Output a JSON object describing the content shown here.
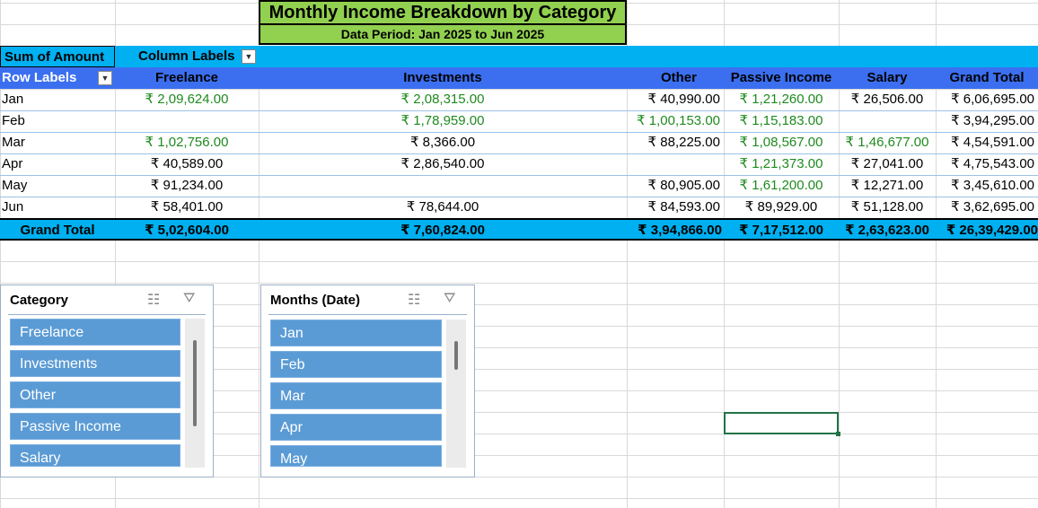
{
  "title": "Monthly Income Breakdown by Category",
  "subtitle": "Data Period: Jan 2025 to Jun 2025",
  "pivot": {
    "values_label": "Sum of Amount",
    "column_labels": "Column Labels",
    "row_labels": "Row Labels",
    "columns": [
      "Freelance",
      "Investments",
      "Other",
      "Passive Income",
      "Salary",
      "Grand Total"
    ],
    "rows": [
      {
        "label": "Jan",
        "cells": [
          "₹ 2,09,624.00",
          "₹ 2,08,315.00",
          "₹ 40,990.00",
          "₹ 1,21,260.00",
          "₹ 26,506.00",
          "₹ 6,06,695.00"
        ]
      },
      {
        "label": "Feb",
        "cells": [
          "",
          "₹ 1,78,959.00",
          "₹ 1,00,153.00",
          "₹ 1,15,183.00",
          "",
          "₹ 3,94,295.00"
        ]
      },
      {
        "label": "Mar",
        "cells": [
          "₹ 1,02,756.00",
          "₹ 8,366.00",
          "₹ 88,225.00",
          "₹ 1,08,567.00",
          "₹ 1,46,677.00",
          "₹ 4,54,591.00"
        ]
      },
      {
        "label": "Apr",
        "cells": [
          "₹ 40,589.00",
          "₹ 2,86,540.00",
          "",
          "₹ 1,21,373.00",
          "₹ 27,041.00",
          "₹ 4,75,543.00"
        ]
      },
      {
        "label": "May",
        "cells": [
          "₹ 91,234.00",
          "",
          "₹ 80,905.00",
          "₹ 1,61,200.00",
          "₹ 12,271.00",
          "₹ 3,45,610.00"
        ]
      },
      {
        "label": "Jun",
        "cells": [
          "₹ 58,401.00",
          "₹ 78,644.00",
          "₹ 84,593.00",
          "₹ 89,929.00",
          "₹ 51,128.00",
          "₹ 3,62,695.00"
        ]
      }
    ],
    "green_cells": [
      [
        0,
        0
      ],
      [
        0,
        1
      ],
      [
        0,
        3
      ],
      [
        1,
        1
      ],
      [
        1,
        2
      ],
      [
        1,
        3
      ],
      [
        2,
        0
      ],
      [
        2,
        3
      ],
      [
        2,
        4
      ],
      [
        3,
        3
      ],
      [
        4,
        3
      ]
    ],
    "total_label": "Grand Total",
    "totals": [
      "₹ 5,02,604.00",
      "₹ 7,60,824.00",
      "₹ 3,94,866.00",
      "₹ 7,17,512.00",
      "₹ 2,63,623.00",
      "₹ 26,39,429.00"
    ]
  },
  "slicer_category": {
    "title": "Category",
    "items": [
      "Freelance",
      "Investments",
      "Other",
      "Passive Income",
      "Salary"
    ]
  },
  "slicer_months": {
    "title": "Months (Date)",
    "items": [
      "Jan",
      "Feb",
      "Mar",
      "Apr",
      "May"
    ]
  },
  "colors": {
    "title_bg": "#92d050",
    "header_bg": "#00b0f0",
    "row_header_bg": "#3b6ff0",
    "value_green": "#1e8a1e",
    "slicer_item": "#5b9bd5"
  },
  "icons": {
    "multi_select": "multi-select-icon",
    "clear_filter": "clear-filter-icon",
    "dropdown": "dropdown-arrow-icon"
  }
}
